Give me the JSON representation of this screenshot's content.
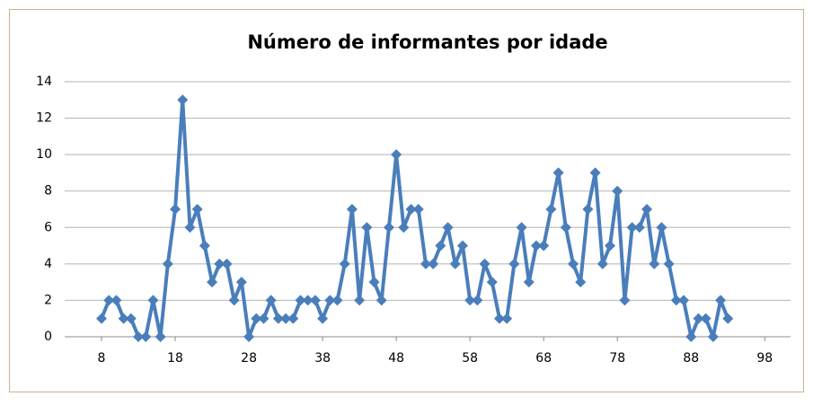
{
  "chart_data": {
    "type": "line",
    "title": "Número de informantes por idade",
    "x": [
      8,
      9,
      10,
      11,
      12,
      13,
      14,
      15,
      16,
      17,
      18,
      19,
      20,
      21,
      22,
      23,
      24,
      25,
      26,
      27,
      28,
      29,
      30,
      31,
      32,
      33,
      34,
      35,
      36,
      37,
      38,
      39,
      40,
      41,
      42,
      43,
      44,
      45,
      46,
      47,
      48,
      49,
      50,
      51,
      52,
      53,
      54,
      55,
      56,
      57,
      58,
      59,
      60,
      61,
      62,
      63,
      64,
      65,
      66,
      67,
      68,
      69,
      70,
      71,
      72,
      73,
      74,
      75,
      76,
      77,
      78,
      79,
      80,
      81,
      82,
      83,
      84,
      85,
      86,
      87,
      88,
      89,
      90,
      91,
      92,
      93
    ],
    "values": [
      1,
      2,
      2,
      1,
      1,
      0,
      0,
      2,
      0,
      4,
      7,
      13,
      6,
      7,
      5,
      3,
      4,
      4,
      2,
      3,
      0,
      1,
      1,
      2,
      1,
      1,
      1,
      2,
      2,
      2,
      1,
      2,
      2,
      4,
      7,
      2,
      6,
      3,
      2,
      6,
      10,
      6,
      7,
      7,
      4,
      4,
      5,
      6,
      4,
      5,
      2,
      2,
      4,
      3,
      1,
      1,
      4,
      6,
      3,
      5,
      5,
      7,
      9,
      6,
      4,
      3,
      7,
      9,
      4,
      5,
      8,
      2,
      6,
      6,
      7,
      4,
      6,
      4,
      2,
      2,
      0,
      1,
      1,
      0,
      2,
      1
    ],
    "color": "#4a7ebb",
    "xlim": [
      3,
      101.5
    ],
    "xticks": [
      8,
      18,
      28,
      38,
      48,
      58,
      68,
      78,
      88,
      98
    ],
    "ylim": [
      0,
      14
    ],
    "yticks": [
      0,
      2,
      4,
      6,
      8,
      10,
      12,
      14
    ],
    "grid": true
  }
}
